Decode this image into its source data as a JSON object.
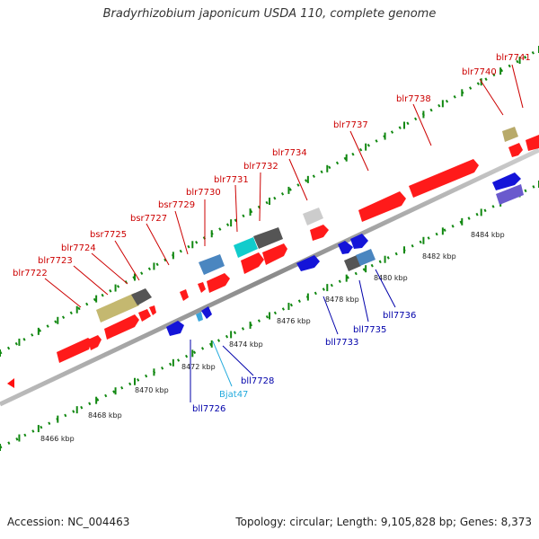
{
  "title": "Bradyrhizobium japonicum USDA 110, complete genome",
  "footer": {
    "accession": "Accession: NC_004463",
    "summary": "Topology: circular; Length: 9,105,828 bp; Genes: 8,373"
  },
  "colors": {
    "forward": "#ff0000",
    "reverse": "#0000dd",
    "backbone": "#999999",
    "ruler": "#118811",
    "label_forward": "#cc0000",
    "label_reverse": "#0000aa",
    "label_rna": "#22aadd"
  },
  "ruler_labels": [
    "8466 kbp",
    "8468 kbp",
    "8470 kbp",
    "8472 kbp",
    "8474 kbp",
    "8476 kbp",
    "8478 kbp",
    "8480 kbp",
    "8482 kbp",
    "8484 kbp"
  ],
  "forward_labels": [
    "blr7722",
    "blr7723",
    "blr7724",
    "bsr7725",
    "bsr7727",
    "bsr7729",
    "blr7730",
    "blr7731",
    "blr7732",
    "blr7734",
    "blr7737",
    "blr7738",
    "blr7740",
    "blr7741"
  ],
  "reverse_labels": [
    "bll7726",
    "Bjat47",
    "bll7728",
    "bll7733",
    "bll7735",
    "bll7736"
  ]
}
